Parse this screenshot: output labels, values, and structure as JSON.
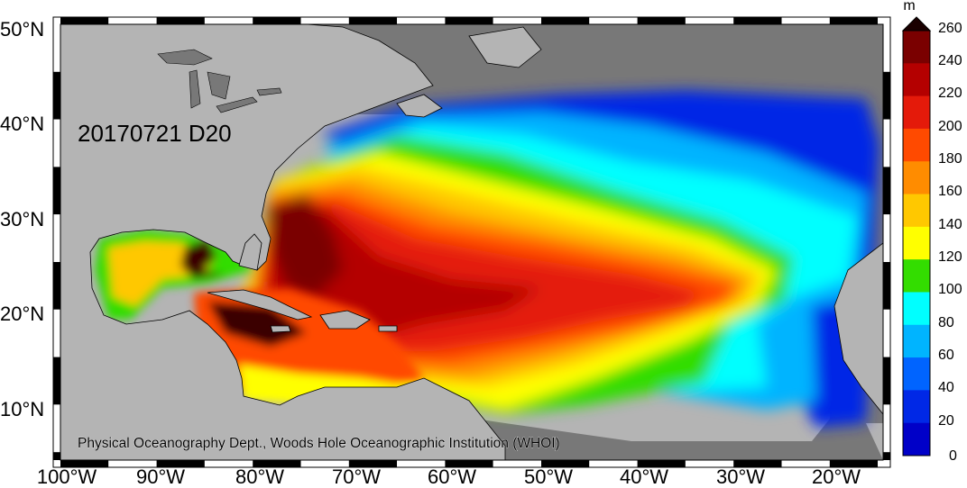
{
  "map": {
    "date_label": "20170721 D20",
    "credit": "Physical Oceanography Dept., Woods Hole Oceanographic Institution (WHOI)",
    "lat_labels": [
      "50°N",
      "40°N",
      "30°N",
      "20°N",
      "10°N"
    ],
    "lon_labels": [
      "100°W",
      "90°W",
      "80°W",
      "70°W",
      "60°W",
      "50°W",
      "40°W",
      "30°W",
      "20°W"
    ],
    "colors": {
      "land": "#b4b4b4",
      "dark_land": "#787878",
      "frame": "#000000"
    }
  },
  "colorbar": {
    "unit": "m",
    "ticks": [
      "260",
      "240",
      "220",
      "200",
      "180",
      "160",
      "140",
      "120",
      "100",
      "80",
      "60",
      "40",
      "20",
      "0"
    ],
    "colors": [
      "#1a0000",
      "#7a0000",
      "#b40000",
      "#e41a0a",
      "#ff4a00",
      "#ff8c00",
      "#ffc800",
      "#ffff00",
      "#33dd00",
      "#00ffff",
      "#00b4ff",
      "#0064ff",
      "#0028e6",
      "#0000c8"
    ]
  }
}
